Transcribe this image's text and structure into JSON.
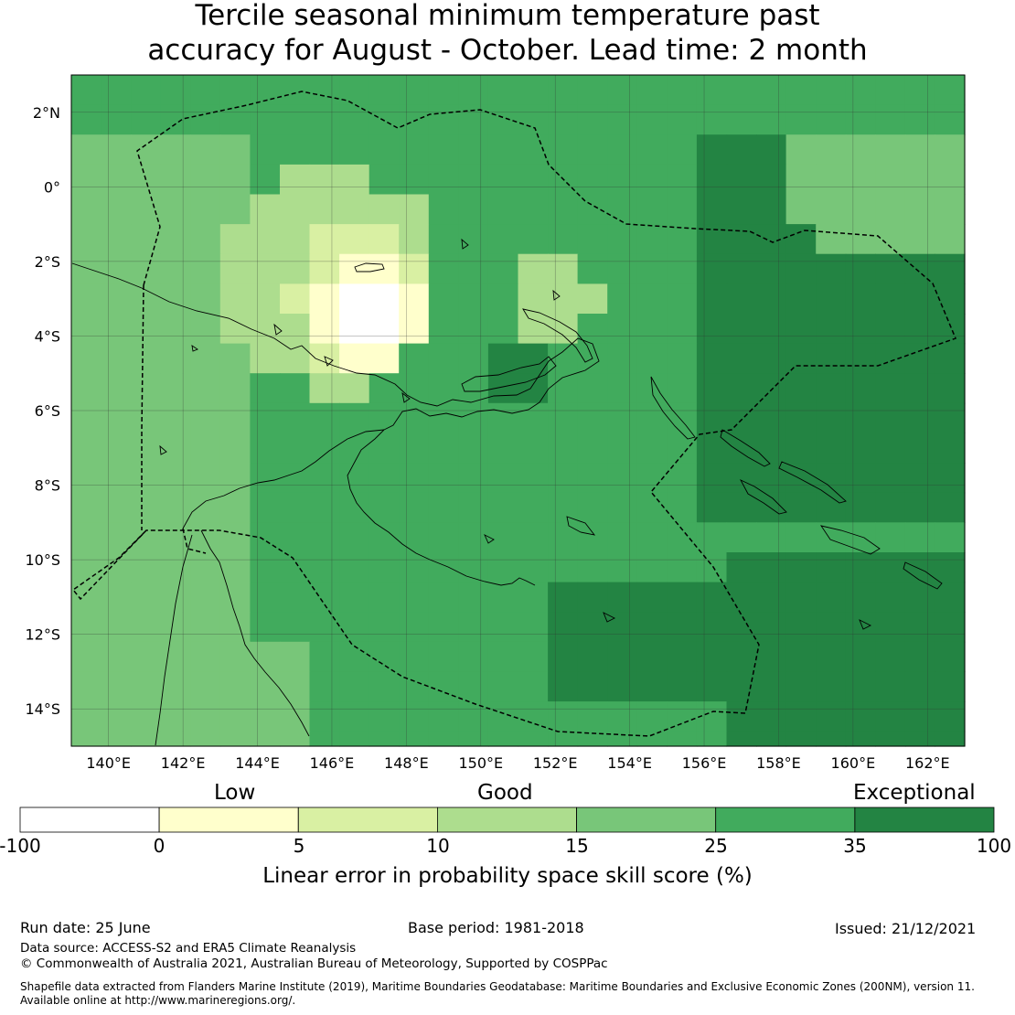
{
  "title_line1": "Tercile seasonal minimum temperature past",
  "title_line2": "accuracy for August - October. Lead time: 2 month",
  "map": {
    "lon_range": [
      139,
      163
    ],
    "lat_range": [
      -15,
      3
    ],
    "cell_deg": 0.8,
    "lon_ticks": [
      "140°E",
      "142°E",
      "144°E",
      "146°E",
      "148°E",
      "150°E",
      "152°E",
      "154°E",
      "156°E",
      "158°E",
      "160°E",
      "162°E"
    ],
    "lat_ticks": [
      "2°N",
      "0°",
      "2°S",
      "4°S",
      "6°S",
      "8°S",
      "10°S",
      "12°S",
      "14°S"
    ],
    "gridlines": true
  },
  "colorbar": {
    "categories": [
      "Low",
      "Good",
      "Exceptional"
    ],
    "tick_labels": [
      "-100",
      "0",
      "5",
      "10",
      "15",
      "25",
      "35",
      "100"
    ],
    "colors": [
      "#ffffff",
      "#ffffcc",
      "#d9f0a3",
      "#addd8e",
      "#78c679",
      "#41ab5d",
      "#238443"
    ],
    "label": "Linear error in probability space skill score (%)"
  },
  "footer": {
    "run_date": "Run date: 25 June",
    "base_period": "Base period: 1981-2018",
    "issued": "Issued: 21/12/2021",
    "data_source": "Data source: ACCESS-S2 and ERA5 Climate Reanalysis",
    "copyright": "© Commonwealth of Australia 2021, Australian Bureau of Meteorology, Supported by COSPPac",
    "shapefile_line1": "Shapefile data extracted from Flanders Marine Institute (2019), Maritime Boundaries Geodatabase: Maritime Boundaries and Exclusive Economic Zones (200NM), version 11.",
    "shapefile_line2": "Available online at http://www.marineregions.org/."
  }
}
